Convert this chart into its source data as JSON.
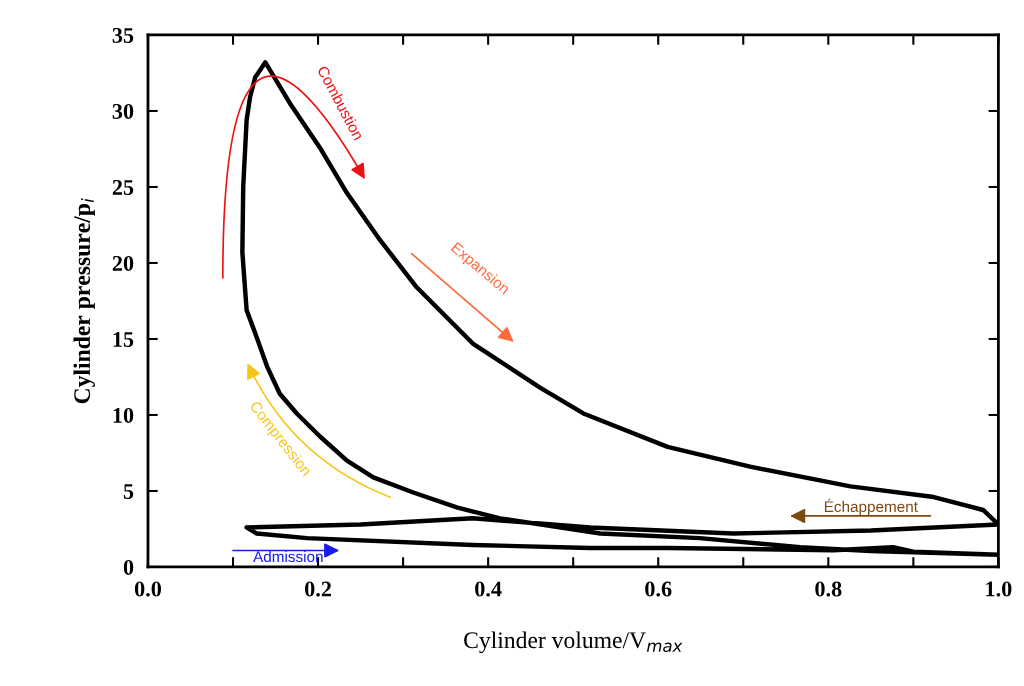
{
  "chart_data": {
    "type": "line",
    "xlabel": "Cylinder volume/V$_{max}$",
    "ylabel": "Cylinder pressure/p$_{i}$",
    "marker": "none",
    "line_style": "solid",
    "series": [
      {
        "color": "#000000",
        "x": [
          0.111,
          0.116,
          0.126,
          0.14,
          0.155,
          0.175,
          0.202,
          0.234,
          0.265,
          0.312,
          0.364,
          0.414,
          0.532,
          0.649,
          0.767,
          0.85,
          1.0,
          null,
          0.111,
          0.112,
          0.116,
          0.12,
          0.126,
          0.138,
          0.167,
          0.202,
          0.234,
          0.273,
          0.316,
          0.382,
          0.461,
          0.512,
          0.611,
          0.708,
          0.826,
          0.924,
          0.982,
          1.0,
          null,
          0.116,
          0.25,
          0.382,
          0.52,
          0.688,
          0.85,
          1.0,
          null,
          0.116,
          0.128,
          0.187,
          0.382,
          0.52,
          0.611,
          0.806,
          0.876,
          0.9,
          1.0
        ],
        "values": [
          20.7,
          16.9,
          15.4,
          13.2,
          11.4,
          10.1,
          8.6,
          7.0,
          5.9,
          4.9,
          3.9,
          3.2,
          2.2,
          1.9,
          1.3,
          1.05,
          0.8,
          null,
          20.7,
          25.0,
          29.4,
          30.9,
          32.2,
          33.2,
          30.5,
          27.6,
          24.6,
          21.5,
          18.4,
          14.7,
          11.8,
          10.1,
          7.9,
          6.6,
          5.3,
          4.6,
          3.75,
          2.8,
          null,
          2.6,
          2.8,
          3.2,
          2.6,
          2.2,
          2.4,
          2.8,
          null,
          2.6,
          2.2,
          1.9,
          1.45,
          1.25,
          1.25,
          1.1,
          1.3,
          1.0,
          0.8
        ]
      }
    ],
    "xlim": [
      0.0,
      1.0
    ],
    "ylim": [
      0,
      35
    ],
    "xticks": [
      {
        "value": 0.0,
        "label": "0.0"
      },
      {
        "value": 0.1,
        "label": null
      },
      {
        "value": 0.2,
        "label": "0.2"
      },
      {
        "value": 0.3,
        "label": null
      },
      {
        "value": 0.4,
        "label": "0.4"
      },
      {
        "value": 0.5,
        "label": null
      },
      {
        "value": 0.6,
        "label": "0.6"
      },
      {
        "value": 0.7,
        "label": null
      },
      {
        "value": 0.8,
        "label": "0.8"
      },
      {
        "value": 0.9,
        "label": null
      },
      {
        "value": 1.0,
        "label": "1.0"
      }
    ],
    "yticks": [
      0,
      5,
      10,
      15,
      20,
      25,
      30,
      35
    ],
    "annotations": [
      "Combustion",
      "Expansion",
      "Compression",
      "Admission",
      "Échappement"
    ]
  }
}
